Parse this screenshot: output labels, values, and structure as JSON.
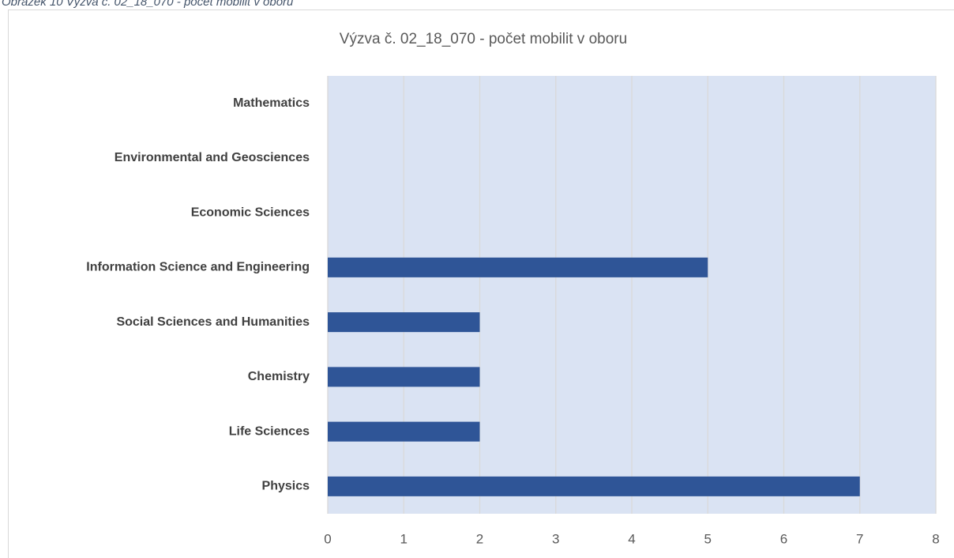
{
  "caption": "Obrázek 10 Výzva č. 02_18_070 - počet mobilit v oboru",
  "chart_data": {
    "type": "barh",
    "title": "Výzva č. 02_18_070 - počet mobilit v oboru",
    "categories": [
      "Mathematics",
      "Environmental and Geosciences",
      "Economic Sciences",
      "Information Science and Engineering",
      "Social Sciences and Humanities",
      "Chemistry",
      "Life Sciences",
      "Physics"
    ],
    "values": [
      0,
      0,
      0,
      5,
      2,
      2,
      2,
      7
    ],
    "color": "#2f5597",
    "xlim": [
      0,
      8
    ],
    "xticks": [
      0,
      1,
      2,
      3,
      4,
      5,
      6,
      7,
      8
    ],
    "grid": true
  }
}
